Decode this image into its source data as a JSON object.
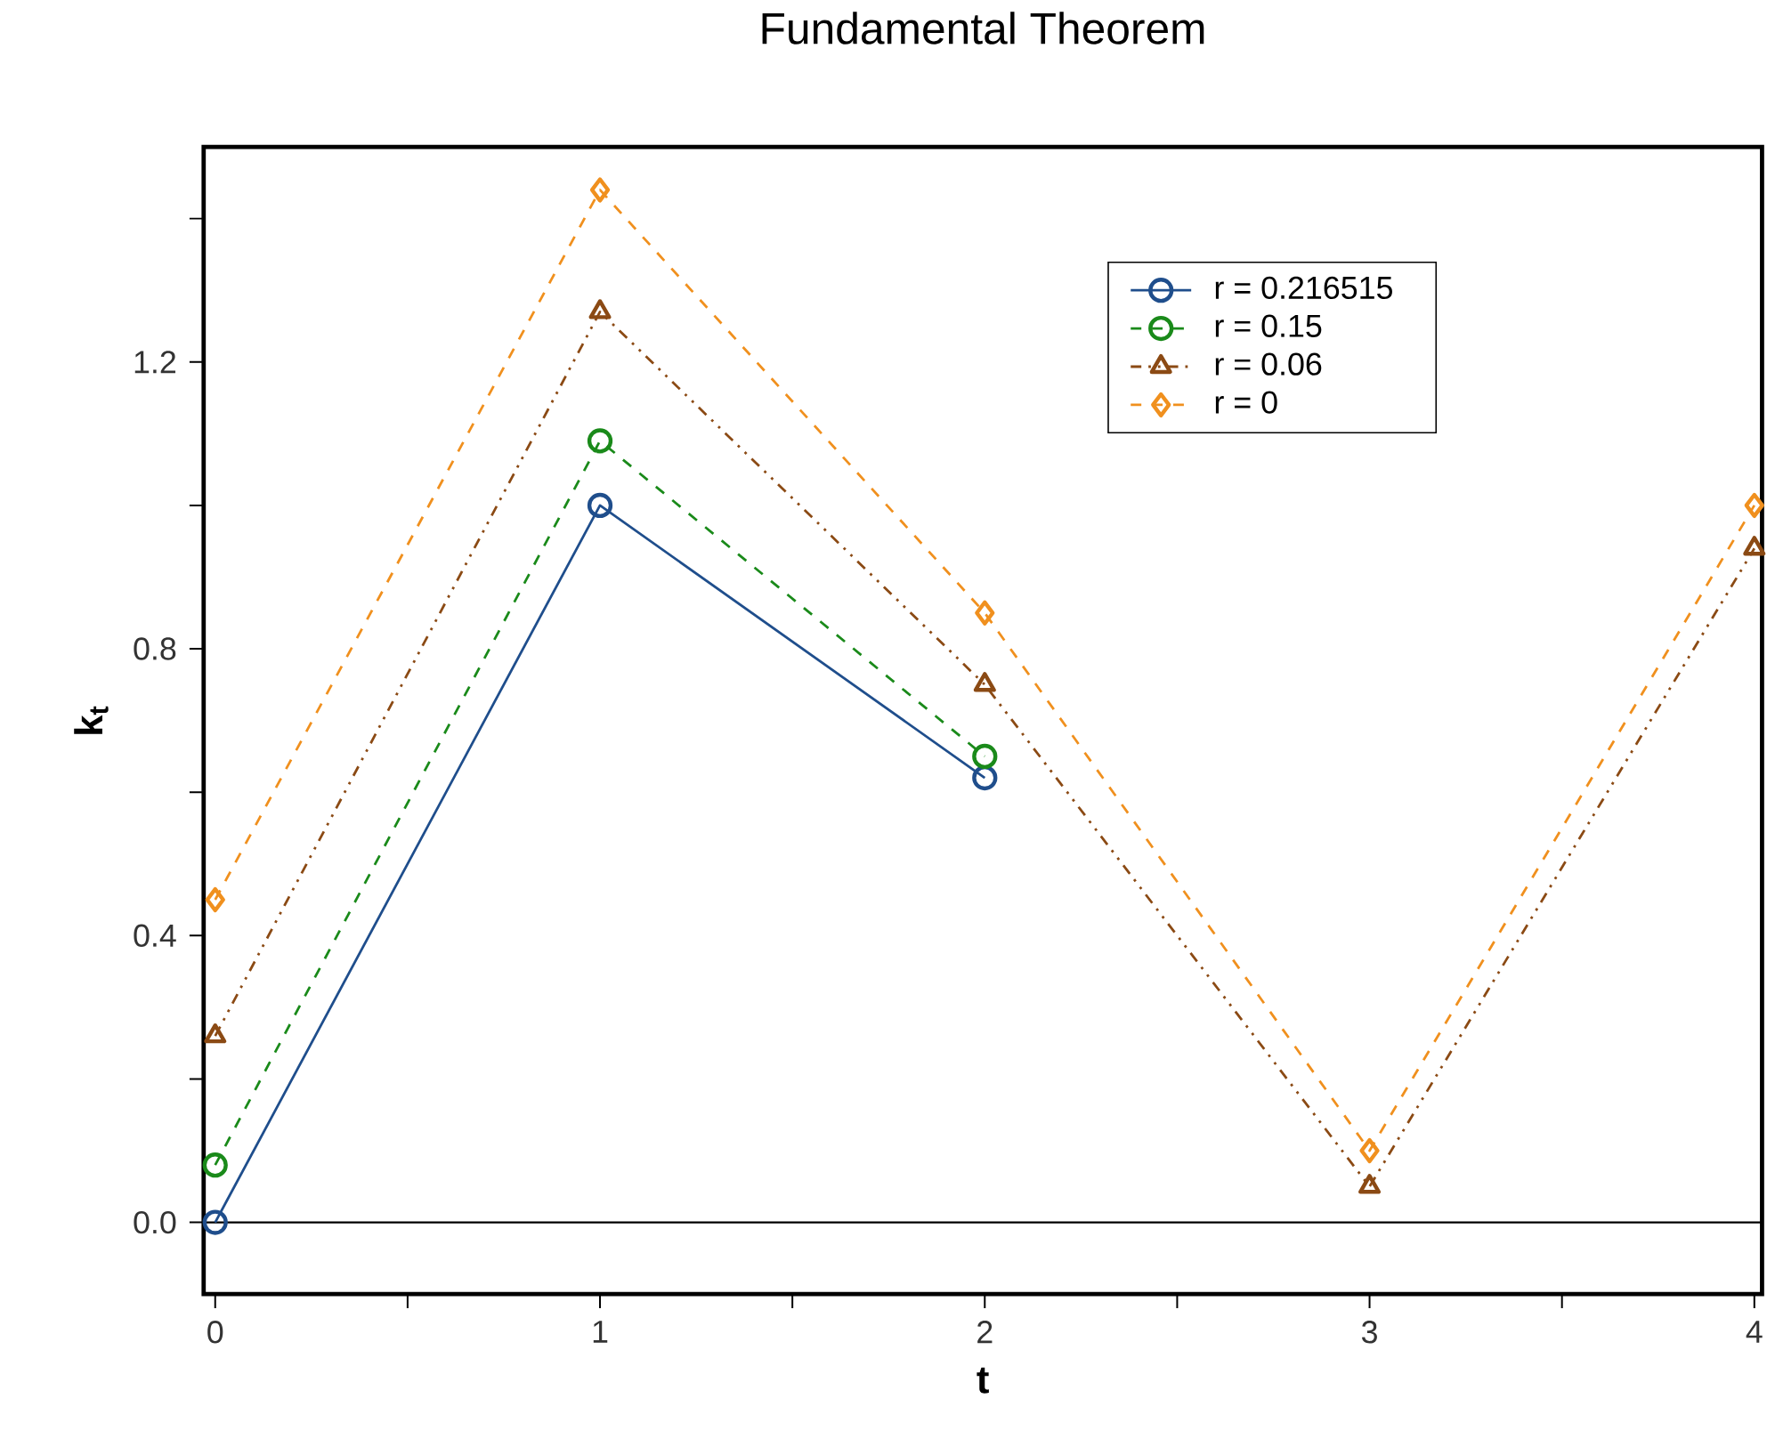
{
  "chart_data": {
    "type": "line",
    "title": "Fundamental Theorem",
    "xlabel": "t",
    "ylabel": "k$_{t}$",
    "x": [
      0,
      1,
      2,
      3,
      4
    ],
    "series": [
      {
        "name": "r = 0.216515",
        "color": "#1f4e8c",
        "values": [
          0,
          1.0,
          0.62,
          null,
          null
        ],
        "marker": "circle",
        "line_style": "solid"
      },
      {
        "name": "r = 0.15",
        "color": "#1a8a1a",
        "values": [
          0.08,
          1.09,
          0.65,
          null,
          null
        ],
        "marker": "circle",
        "line_style": "dashed"
      },
      {
        "name": "r = 0.06",
        "color": "#8b4a14",
        "values": [
          0.26,
          1.27,
          0.75,
          0.05,
          0.94
        ],
        "marker": "triangle",
        "line_style": "dotted"
      },
      {
        "name": "r = 0",
        "color": "#f0901e",
        "values": [
          0.45,
          1.44,
          0.85,
          0.1,
          1.0
        ],
        "marker": "diamond",
        "line_style": "dashed"
      }
    ],
    "xlim": [
      -0.03,
      4.02
    ],
    "ylim": [
      -0.1,
      1.5
    ],
    "xticks": [
      0,
      {
        "value": 0.5,
        "label": null
      },
      1,
      {
        "value": 1.5,
        "label": null
      },
      2,
      {
        "value": 2.5,
        "label": null
      },
      3,
      {
        "value": 3.5,
        "label": null
      },
      4
    ],
    "yticks": [
      {
        "value": 0,
        "label": "0.0"
      },
      {
        "value": 0.2,
        "label": null
      },
      0.4,
      {
        "value": 0.6,
        "label": null
      },
      0.8,
      {
        "value": 1.0,
        "label": null
      },
      1.2,
      {
        "value": 1.4,
        "label": null
      }
    ],
    "ref_lines": [
      {
        "axis": "y",
        "value": 0,
        "color": "#000000"
      }
    ],
    "legend": "top right",
    "grid": false
  }
}
